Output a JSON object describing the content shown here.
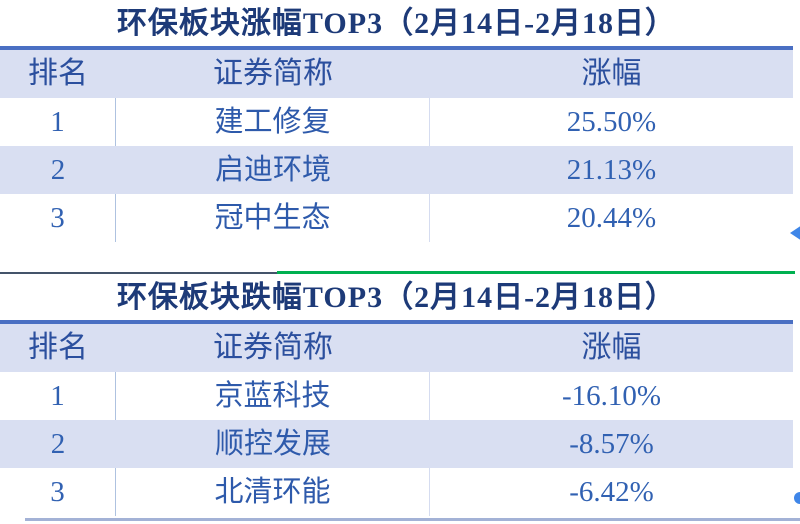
{
  "colors": {
    "title_text": "#1d3a78",
    "body_text": "#2e5aab",
    "header_bg": "#d9dff2",
    "band_bg": "#d9dff2",
    "title_rule": "#4a6fc3",
    "divider_dark": "#44546a",
    "divider_green": "#00b050",
    "arrow_blue": "#3f86e8"
  },
  "icons": {
    "scroll_left_arrow": "◀",
    "clipped_dot": "●"
  },
  "tables": [
    {
      "title": "环保板块涨幅TOP3（2月14日-2月18日）",
      "headers": [
        "排名",
        "证券简称",
        "涨幅"
      ],
      "rows": [
        {
          "rank": "1",
          "name": "建工修复",
          "change": "25.50%"
        },
        {
          "rank": "2",
          "name": "启迪环境",
          "change": "21.13%"
        },
        {
          "rank": "3",
          "name": "冠中生态",
          "change": "20.44%"
        }
      ]
    },
    {
      "title": "环保板块跌幅TOP3（2月14日-2月18日）",
      "headers": [
        "排名",
        "证券简称",
        "涨幅"
      ],
      "rows": [
        {
          "rank": "1",
          "name": "京蓝科技",
          "change": "-16.10%"
        },
        {
          "rank": "2",
          "name": "顺控发展",
          "change": "-8.57%"
        },
        {
          "rank": "3",
          "name": "北清环能",
          "change": "-6.42%"
        }
      ]
    }
  ]
}
